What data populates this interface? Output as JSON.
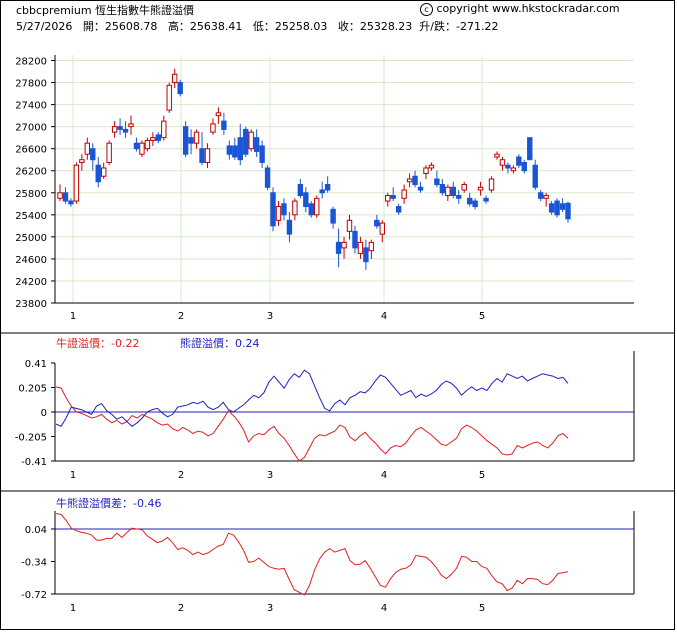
{
  "header": {
    "source": "cbbcpremium",
    "title": "恆生指數牛熊證溢價",
    "copyright": "copyright www.hkstockradar.com",
    "quote_line": "5/27/2026   開：25608.78   高：25638.41   低：25258.03   收：25328.23  升/跌：-271.22"
  },
  "panels": {
    "premium": {
      "bull_label": "牛證溢價：",
      "bull_value": "-0.22",
      "bear_label": "熊證溢價：",
      "bear_value": "0.24"
    },
    "diff": {
      "label": "牛熊證溢價差：",
      "value": "-0.46"
    }
  },
  "colors": {
    "up": "#c00000",
    "down": "#1a55d6",
    "bull": "#e02020",
    "bear": "#2020c0",
    "grid": "#d8e8c8"
  },
  "chart_data": [
    {
      "type": "candlestick",
      "x_ticks": [
        "1",
        "2",
        "3",
        "4",
        "5"
      ],
      "x_tick_index": [
        3,
        25,
        43,
        66,
        86
      ],
      "y_ticks": [
        23800,
        24200,
        24600,
        25000,
        25400,
        25800,
        26200,
        26600,
        27000,
        27400,
        27800,
        28200
      ],
      "ylim": [
        23800,
        28300
      ],
      "ohlc": [
        [
          25700,
          25950,
          25650,
          25800
        ],
        [
          25800,
          25900,
          25600,
          25650
        ],
        [
          25650,
          25700,
          25550,
          25600
        ],
        [
          25650,
          26350,
          25600,
          26300
        ],
        [
          26350,
          26500,
          26200,
          26400
        ],
        [
          26500,
          26800,
          26400,
          26700
        ],
        [
          26600,
          26700,
          26200,
          26400
        ],
        [
          26300,
          26450,
          25900,
          26000
        ],
        [
          26100,
          26350,
          26050,
          26250
        ],
        [
          26350,
          26750,
          26300,
          26700
        ],
        [
          26900,
          27100,
          26800,
          27000
        ],
        [
          27000,
          27150,
          26850,
          26950
        ],
        [
          26950,
          27100,
          26800,
          26900
        ],
        [
          27000,
          27200,
          26850,
          27050
        ],
        [
          26700,
          26800,
          26550,
          26600
        ],
        [
          26500,
          26750,
          26450,
          26700
        ],
        [
          26600,
          26800,
          26550,
          26750
        ],
        [
          26750,
          26900,
          26650,
          26800
        ],
        [
          26850,
          26900,
          26700,
          26750
        ],
        [
          26800,
          27200,
          26750,
          27100
        ],
        [
          27300,
          27800,
          27250,
          27750
        ],
        [
          27800,
          28050,
          27700,
          27950
        ],
        [
          27800,
          27850,
          27550,
          27600
        ],
        [
          27000,
          27100,
          26450,
          26500
        ],
        [
          26800,
          26950,
          26500,
          26700
        ],
        [
          26700,
          26950,
          26600,
          26900
        ],
        [
          26600,
          26900,
          26300,
          26350
        ],
        [
          26350,
          26700,
          26250,
          26600
        ],
        [
          26900,
          27150,
          26850,
          27050
        ],
        [
          27200,
          27350,
          27050,
          27250
        ],
        [
          27100,
          27250,
          26850,
          26950
        ],
        [
          26650,
          26750,
          26400,
          26500
        ],
        [
          26650,
          26800,
          26400,
          26450
        ],
        [
          26800,
          27050,
          26300,
          26400
        ],
        [
          26950,
          27000,
          26450,
          26500
        ],
        [
          26600,
          26950,
          26550,
          26900
        ],
        [
          26800,
          26950,
          26450,
          26550
        ],
        [
          26650,
          26750,
          26250,
          26350
        ],
        [
          26250,
          26300,
          25850,
          25900
        ],
        [
          25800,
          25900,
          25100,
          25200
        ],
        [
          25300,
          25650,
          25200,
          25550
        ],
        [
          25600,
          25700,
          25300,
          25400
        ],
        [
          25300,
          25450,
          24900,
          25050
        ],
        [
          25400,
          25700,
          25300,
          25650
        ],
        [
          25950,
          26050,
          25700,
          25750
        ],
        [
          25800,
          25900,
          25450,
          25550
        ],
        [
          25600,
          25650,
          25350,
          25400
        ],
        [
          25400,
          25750,
          25350,
          25700
        ],
        [
          25850,
          26000,
          25700,
          25800
        ],
        [
          25950,
          26100,
          25800,
          25850
        ],
        [
          25500,
          25550,
          25150,
          25250
        ],
        [
          24900,
          25150,
          24450,
          24700
        ],
        [
          24800,
          25000,
          24600,
          24900
        ],
        [
          25100,
          25400,
          24950,
          25300
        ],
        [
          25100,
          25200,
          24700,
          24800
        ],
        [
          24700,
          25000,
          24600,
          24900
        ],
        [
          24800,
          24950,
          24400,
          24550
        ],
        [
          24750,
          24950,
          24600,
          24900
        ],
        [
          25300,
          25400,
          25150,
          25200
        ],
        [
          25050,
          25300,
          24900,
          25250
        ],
        [
          25650,
          25800,
          25550,
          25750
        ],
        [
          25750,
          25900,
          25650,
          25700
        ],
        [
          25550,
          25600,
          25400,
          25450
        ],
        [
          25700,
          25950,
          25600,
          25850
        ],
        [
          26000,
          26150,
          25900,
          26050
        ],
        [
          26100,
          26200,
          25900,
          25950
        ],
        [
          25900,
          26000,
          25800,
          25850
        ],
        [
          26150,
          26300,
          26050,
          26250
        ],
        [
          26250,
          26350,
          26200,
          26300
        ],
        [
          26050,
          26200,
          25900,
          25950
        ],
        [
          25950,
          26050,
          25750,
          25800
        ],
        [
          25750,
          25950,
          25650,
          25900
        ],
        [
          25900,
          26000,
          25700,
          25750
        ],
        [
          25750,
          25850,
          25600,
          25700
        ],
        [
          25850,
          26000,
          25800,
          25950
        ],
        [
          25700,
          25800,
          25550,
          25600
        ],
        [
          25650,
          25700,
          25500,
          25550
        ],
        [
          25850,
          26000,
          25750,
          25900
        ],
        [
          25700,
          25750,
          25600,
          25650
        ],
        [
          25850,
          26100,
          25800,
          26050
        ],
        [
          26450,
          26550,
          26400,
          26500
        ],
        [
          26300,
          26450,
          26200,
          26400
        ],
        [
          26300,
          26350,
          26150,
          26250
        ],
        [
          26200,
          26300,
          26150,
          26250
        ],
        [
          26450,
          26500,
          26250,
          26300
        ],
        [
          26350,
          26400,
          26150,
          26200
        ],
        [
          26800,
          26800,
          26400,
          26400
        ],
        [
          26300,
          26400,
          25850,
          25900
        ],
        [
          25800,
          25850,
          25650,
          25700
        ],
        [
          25700,
          25800,
          25550,
          25750
        ],
        [
          25600,
          25650,
          25400,
          25450
        ],
        [
          25650,
          25700,
          25350,
          25400
        ],
        [
          25600,
          25700,
          25450,
          25500
        ],
        [
          25608.78,
          25638.41,
          25258.03,
          25328.23
        ]
      ]
    },
    {
      "type": "line",
      "x_ticks": [
        "1",
        "2",
        "3",
        "4",
        "5"
      ],
      "y_ticks": [
        0.41,
        0.205,
        0,
        -0.205,
        -0.41
      ],
      "ylim": [
        -0.41,
        0.41
      ],
      "series": [
        {
          "name": "牛證溢價",
          "values": [
            0.21,
            0.2,
            0.12,
            0.05,
            0,
            -0.01,
            -0.03,
            -0.05,
            -0.04,
            -0.02,
            -0.06,
            -0.09,
            -0.07,
            -0.1,
            -0.08,
            -0.03,
            -0.05,
            -0.02,
            -0.04,
            -0.06,
            -0.09,
            -0.11,
            -0.1,
            -0.14,
            -0.16,
            -0.13,
            -0.15,
            -0.18,
            -0.16,
            -0.17,
            -0.2,
            -0.18,
            -0.12,
            -0.06,
            0.01,
            -0.03,
            -0.08,
            -0.15,
            -0.25,
            -0.2,
            -0.18,
            -0.19,
            -0.15,
            -0.12,
            -0.18,
            -0.22,
            -0.28,
            -0.35,
            -0.41,
            -0.38,
            -0.3,
            -0.22,
            -0.19,
            -0.2,
            -0.18,
            -0.16,
            -0.11,
            -0.13,
            -0.21,
            -0.24,
            -0.2,
            -0.17,
            -0.22,
            -0.26,
            -0.31,
            -0.35,
            -0.3,
            -0.28,
            -0.29,
            -0.26,
            -0.2,
            -0.15,
            -0.13,
            -0.16,
            -0.19,
            -0.23,
            -0.27,
            -0.28,
            -0.25,
            -0.22,
            -0.14,
            -0.11,
            -0.13,
            -0.16,
            -0.2,
            -0.24,
            -0.27,
            -0.3,
            -0.35,
            -0.36,
            -0.35,
            -0.28,
            -0.3,
            -0.28,
            -0.26,
            -0.25,
            -0.28,
            -0.3,
            -0.26,
            -0.2,
            -0.18,
            -0.22
          ]
        },
        {
          "name": "熊證溢價",
          "values": [
            -0.1,
            -0.12,
            -0.05,
            0.04,
            0.03,
            0.02,
            0,
            -0.02,
            0.05,
            0.07,
            0.01,
            -0.02,
            -0.06,
            -0.04,
            -0.08,
            -0.12,
            -0.09,
            -0.05,
            0,
            0.02,
            0.03,
            -0.01,
            -0.04,
            -0.02,
            0.04,
            0.05,
            0.06,
            0.08,
            0.07,
            0.09,
            0.04,
            0.02,
            0.04,
            0.08,
            0.02,
            0,
            0.03,
            0.06,
            0.1,
            0.14,
            0.12,
            0.16,
            0.25,
            0.3,
            0.25,
            0.2,
            0.27,
            0.32,
            0.29,
            0.35,
            0.32,
            0.22,
            0.12,
            0.03,
            0.01,
            0.07,
            0.1,
            0.06,
            0.12,
            0.14,
            0.17,
            0.16,
            0.2,
            0.26,
            0.31,
            0.29,
            0.24,
            0.19,
            0.14,
            0.16,
            0.18,
            0.12,
            0.15,
            0.13,
            0.15,
            0.18,
            0.23,
            0.26,
            0.24,
            0.2,
            0.14,
            0.18,
            0.21,
            0.18,
            0.2,
            0.18,
            0.24,
            0.28,
            0.25,
            0.32,
            0.3,
            0.28,
            0.3,
            0.26,
            0.28,
            0.3,
            0.32,
            0.31,
            0.3,
            0.28,
            0.29,
            0.24
          ]
        }
      ]
    },
    {
      "type": "line",
      "x_ticks": [
        "1",
        "2",
        "3",
        "4",
        "5"
      ],
      "y_ticks": [
        0.04,
        -0.34,
        -0.72
      ],
      "ylim": [
        -0.72,
        0.25
      ],
      "series": [
        {
          "name": "牛熊證溢價差",
          "values": [
            0.22,
            0.21,
            0.14,
            0.05,
            0.02,
            0.0,
            -0.01,
            -0.03,
            -0.09,
            -0.09,
            -0.07,
            -0.07,
            -0.01,
            -0.06,
            0.0,
            0.05,
            0.04,
            0.03,
            -0.04,
            -0.08,
            -0.12,
            -0.1,
            -0.06,
            -0.12,
            -0.2,
            -0.18,
            -0.21,
            -0.26,
            -0.23,
            -0.26,
            -0.24,
            -0.2,
            -0.16,
            -0.14,
            -0.01,
            -0.03,
            -0.11,
            -0.21,
            -0.35,
            -0.34,
            -0.3,
            -0.35,
            -0.4,
            -0.42,
            -0.43,
            -0.42,
            -0.55,
            -0.67,
            -0.7,
            -0.73,
            -0.62,
            -0.44,
            -0.31,
            -0.23,
            -0.19,
            -0.23,
            -0.21,
            -0.19,
            -0.33,
            -0.38,
            -0.37,
            -0.33,
            -0.42,
            -0.52,
            -0.62,
            -0.64,
            -0.54,
            -0.47,
            -0.43,
            -0.42,
            -0.38,
            -0.27,
            -0.28,
            -0.29,
            -0.34,
            -0.41,
            -0.5,
            -0.54,
            -0.49,
            -0.42,
            -0.28,
            -0.29,
            -0.34,
            -0.34,
            -0.4,
            -0.42,
            -0.51,
            -0.58,
            -0.6,
            -0.68,
            -0.65,
            -0.56,
            -0.6,
            -0.54,
            -0.54,
            -0.55,
            -0.6,
            -0.61,
            -0.56,
            -0.48,
            -0.47,
            -0.46
          ]
        }
      ]
    }
  ]
}
